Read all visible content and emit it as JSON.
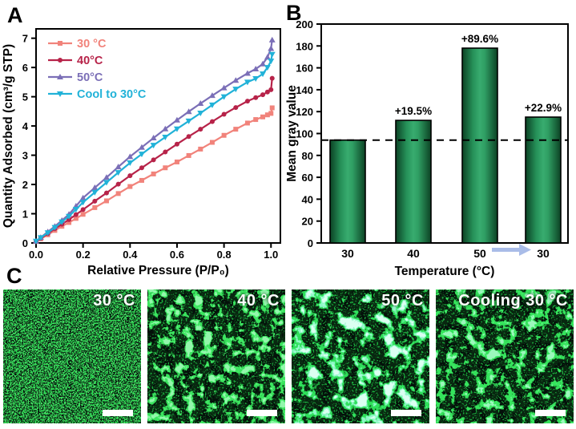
{
  "panels": {
    "a": {
      "label": "A"
    },
    "b": {
      "label": "B"
    },
    "c": {
      "label": "C",
      "tiles": [
        {
          "label": "30 °C"
        },
        {
          "label": "40 °C"
        },
        {
          "label": "50 °C"
        },
        {
          "label": "Cooling 30 °C"
        }
      ]
    }
  },
  "chart_data": [
    {
      "type": "line",
      "title": "",
      "xlabel": "Relative Pressure (P/P₀)",
      "ylabel": "Quantity Adsorbed (cm³/g STP)",
      "xlim": [
        0,
        1.04
      ],
      "ylim": [
        0,
        7.3
      ],
      "xticks": [
        "0.0",
        "0.2",
        "0.4",
        "0.6",
        "0.8",
        "1.0"
      ],
      "xtick_values": [
        0,
        0.2,
        0.4,
        0.6,
        0.8,
        1.0
      ],
      "yticks": [
        0,
        1,
        2,
        3,
        4,
        5,
        6,
        7
      ],
      "grid": false,
      "legend_position": "top-left",
      "x_shared": [
        0,
        0.02,
        0.05,
        0.08,
        0.11,
        0.14,
        0.17,
        0.2,
        0.25,
        0.3,
        0.35,
        0.4,
        0.45,
        0.5,
        0.55,
        0.6,
        0.65,
        0.7,
        0.75,
        0.8,
        0.85,
        0.9,
        0.935,
        0.965,
        0.985,
        1.0,
        1.005
      ],
      "series": [
        {
          "name": "30 °C",
          "color": "#F1837B",
          "marker": "square",
          "y": [
            0.05,
            0.14,
            0.28,
            0.43,
            0.57,
            0.7,
            0.84,
            0.98,
            1.21,
            1.44,
            1.69,
            1.93,
            2.14,
            2.36,
            2.57,
            2.77,
            2.99,
            3.21,
            3.44,
            3.68,
            3.89,
            4.1,
            4.22,
            4.31,
            4.38,
            4.43,
            4.62
          ]
        },
        {
          "name": "40°C",
          "color": "#B72349",
          "marker": "circle",
          "y": [
            0.05,
            0.16,
            0.32,
            0.49,
            0.64,
            0.8,
            0.97,
            1.14,
            1.43,
            1.71,
            2.01,
            2.3,
            2.57,
            2.84,
            3.11,
            3.38,
            3.64,
            3.89,
            4.15,
            4.4,
            4.63,
            4.85,
            4.97,
            5.07,
            5.16,
            5.24,
            5.63
          ]
        },
        {
          "name": "50°C",
          "color": "#7B6FB7",
          "marker": "triangle-up",
          "y": [
            0.06,
            0.19,
            0.38,
            0.57,
            0.77,
            0.98,
            1.26,
            1.54,
            1.89,
            2.24,
            2.6,
            2.95,
            3.27,
            3.59,
            3.9,
            4.2,
            4.49,
            4.77,
            5.04,
            5.3,
            5.56,
            5.8,
            5.95,
            6.12,
            6.35,
            6.65,
            6.94
          ]
        },
        {
          "name": "Cool to 30°C",
          "color": "#21B2D8",
          "marker": "triangle-down",
          "y": [
            0.06,
            0.18,
            0.35,
            0.53,
            0.72,
            0.91,
            1.15,
            1.39,
            1.73,
            2.07,
            2.41,
            2.74,
            3.04,
            3.34,
            3.62,
            3.9,
            4.17,
            4.44,
            4.72,
            5.0,
            5.26,
            5.5,
            5.62,
            5.78,
            6.0,
            6.22,
            6.45
          ]
        }
      ]
    },
    {
      "type": "bar",
      "title": "",
      "categories": [
        "30",
        "40",
        "50",
        "30"
      ],
      "values": [
        94,
        112,
        178,
        115
      ],
      "annotations": [
        "",
        "+19.5%",
        "+89.6%",
        "+22.9%"
      ],
      "dashed_reference_line": 94,
      "ylabel": "Mean gray value",
      "xlabel": "Temperature (°C)",
      "ylim": [
        0,
        200
      ],
      "ytick_step": 20,
      "grid": false,
      "bar_fill_edge": "#0C4224",
      "bar_fill_mid": "#38AC6F",
      "bar_border": "#000000",
      "dash_color": "#000000",
      "arrow_color": "#A9BCE8",
      "arrow_between": [
        "50",
        "30"
      ]
    }
  ]
}
